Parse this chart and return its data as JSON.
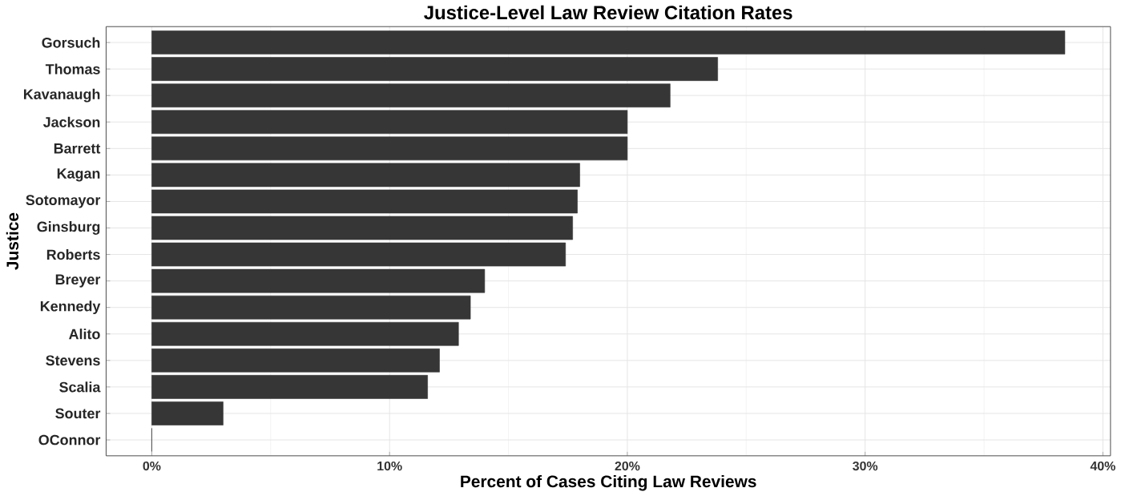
{
  "chart_data": {
    "type": "bar",
    "orientation": "horizontal",
    "title": "Justice-Level Law Review Citation Rates",
    "xlabel": "Percent of Cases Citing Law Reviews",
    "ylabel": "Justice",
    "categories": [
      "Gorsuch",
      "Thomas",
      "Kavanaugh",
      "Jackson",
      "Barrett",
      "Kagan",
      "Sotomayor",
      "Ginsburg",
      "Roberts",
      "Breyer",
      "Kennedy",
      "Alito",
      "Stevens",
      "Scalia",
      "Souter",
      "OConnor"
    ],
    "values": [
      38.4,
      23.8,
      21.8,
      20.0,
      20.0,
      18.0,
      17.9,
      17.7,
      17.4,
      14.0,
      13.4,
      12.9,
      12.1,
      11.6,
      3.0,
      0
    ],
    "color": "#363636",
    "xlim": [
      -1.92,
      40.32
    ],
    "xticks": [
      {
        "value": 0,
        "label": "0%"
      },
      {
        "value": 10,
        "label": "10%"
      },
      {
        "value": 20,
        "label": "20%"
      },
      {
        "value": 30,
        "label": "30%"
      },
      {
        "value": 40,
        "label": "40%"
      }
    ],
    "grid": true
  }
}
